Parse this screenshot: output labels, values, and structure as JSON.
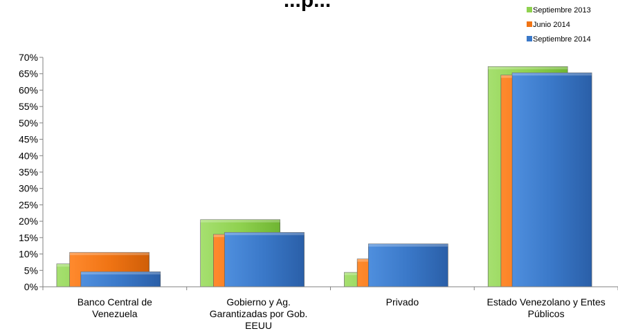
{
  "chart_data": {
    "type": "bar",
    "title": "...p...",
    "categories": [
      [
        "Banco Central de",
        "Venezuela"
      ],
      [
        "Gobierno y Ag.",
        "Garantizadas por Gob.",
        "EEUU"
      ],
      [
        "Privado"
      ],
      [
        "Estado Venezolano y Entes",
        "Públicos"
      ]
    ],
    "series": [
      {
        "name": "Septiembre 2013",
        "color": "#8fd14f",
        "values": [
          7.0,
          20.5,
          4.4,
          67.2
        ]
      },
      {
        "name": "Junio 2014",
        "color": "#f07414",
        "values": [
          10.5,
          16.0,
          8.5,
          64.6
        ]
      },
      {
        "name": "Septiembre 2014",
        "color": "#3a78c8",
        "values": [
          4.6,
          16.6,
          13.1,
          65.3
        ]
      }
    ],
    "ylim": [
      0,
      70
    ],
    "yticks": [
      "0%",
      "5%",
      "10%",
      "15%",
      "20%",
      "25%",
      "30%",
      "35%",
      "40%",
      "45%",
      "50%",
      "55%",
      "60%",
      "65%",
      "70%"
    ],
    "legend_position": "top-right",
    "grid": false
  }
}
